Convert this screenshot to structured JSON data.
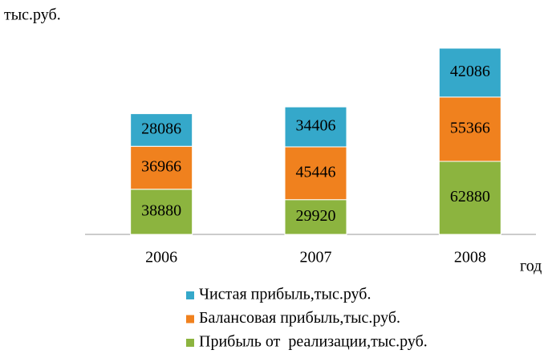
{
  "chart_data": {
    "type": "stacked-bar",
    "y_label": "тыс.руб.",
    "x_label": "год",
    "categories": [
      "2006",
      "2007",
      "2008"
    ],
    "series": [
      {
        "name": "Прибыль от  реализации,тыс.руб.",
        "color": "#8cb43f",
        "values": [
          38880,
          29920,
          62880
        ]
      },
      {
        "name": "Балансовая прибыль,тыс.руб.",
        "color": "#f0811e",
        "values": [
          36966,
          45446,
          55366
        ]
      },
      {
        "name": "Чистая прибыль,тыс.руб.",
        "color": "#35a8ca",
        "values": [
          28086,
          34406,
          42086
        ]
      }
    ]
  }
}
